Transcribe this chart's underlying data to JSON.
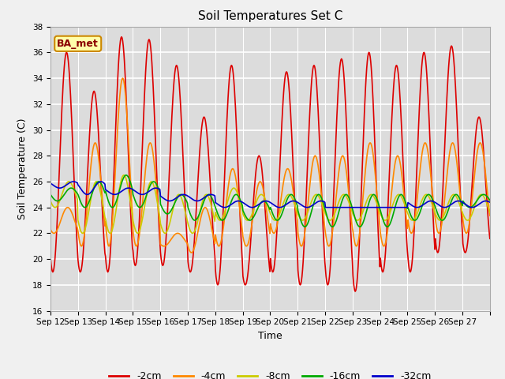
{
  "title": "Soil Temperatures Set C",
  "xlabel": "Time",
  "ylabel": "Soil Temperature (C)",
  "ylim": [
    16,
    38
  ],
  "yticks": [
    16,
    18,
    20,
    22,
    24,
    26,
    28,
    30,
    32,
    34,
    36,
    38
  ],
  "colors": {
    "-2cm": "#dd0000",
    "-4cm": "#ff8800",
    "-8cm": "#cccc00",
    "-16cm": "#00aa00",
    "-32cm": "#0000cc"
  },
  "legend_labels": [
    "-2cm",
    "-4cm",
    "-8cm",
    "-16cm",
    "-32cm"
  ],
  "annotation_text": "BA_met",
  "annotation_bg": "#ffffaa",
  "annotation_border": "#cc8800",
  "fig_bg": "#f0f0f0",
  "plot_bg": "#dcdcdc",
  "n_days": 16,
  "start_day": 12,
  "points_per_day": 48,
  "series": {
    "-2cm": {
      "daily_max": [
        36.0,
        33.0,
        37.2,
        37.0,
        35.0,
        31.0,
        35.0,
        28.0,
        34.5,
        35.0,
        35.5,
        36.0,
        35.0,
        36.0,
        36.5,
        31.0
      ],
      "daily_min": [
        19.0,
        19.0,
        19.0,
        19.5,
        19.5,
        19.0,
        18.0,
        18.0,
        19.0,
        18.0,
        18.0,
        17.5,
        19.0,
        19.0,
        20.5,
        20.5
      ],
      "peak_hour": 14
    },
    "-4cm": {
      "daily_max": [
        24.0,
        29.0,
        34.0,
        29.0,
        22.0,
        24.0,
        27.0,
        26.0,
        27.0,
        28.0,
        28.0,
        29.0,
        28.0,
        29.0,
        29.0,
        29.0
      ],
      "daily_min": [
        22.0,
        21.0,
        21.0,
        21.0,
        21.0,
        20.5,
        21.0,
        21.0,
        22.0,
        21.0,
        21.0,
        21.0,
        21.0,
        22.0,
        22.0,
        22.0
      ],
      "peak_hour": 15
    },
    "-8cm": {
      "daily_max": [
        26.0,
        26.0,
        26.5,
        26.0,
        25.0,
        25.0,
        25.5,
        25.0,
        25.0,
        25.0,
        25.0,
        25.0,
        25.0,
        25.0,
        25.0,
        25.0
      ],
      "daily_min": [
        24.0,
        22.0,
        22.0,
        22.0,
        22.0,
        22.0,
        23.0,
        23.0,
        23.0,
        23.0,
        23.0,
        23.0,
        23.0,
        23.0,
        23.0,
        23.0
      ],
      "peak_hour": 16
    },
    "-16cm": {
      "daily_max": [
        25.5,
        26.0,
        26.5,
        26.0,
        25.0,
        25.0,
        25.0,
        24.5,
        25.0,
        25.0,
        25.0,
        25.0,
        25.0,
        25.0,
        25.0,
        25.0
      ],
      "daily_min": [
        24.5,
        24.0,
        24.0,
        24.0,
        23.5,
        23.0,
        23.0,
        23.0,
        23.0,
        22.5,
        22.5,
        22.5,
        22.5,
        23.0,
        23.0,
        24.0
      ],
      "peak_hour": 18
    },
    "-32cm": {
      "daily_max": [
        26.0,
        26.0,
        25.5,
        25.5,
        25.0,
        25.0,
        24.5,
        24.5,
        24.5,
        24.5,
        24.0,
        24.0,
        24.0,
        24.5,
        24.5,
        24.5
      ],
      "daily_min": [
        25.5,
        25.0,
        25.0,
        25.0,
        24.5,
        24.5,
        24.0,
        24.0,
        24.0,
        24.0,
        24.0,
        24.0,
        24.0,
        24.0,
        24.0,
        24.0
      ],
      "peak_hour": 20
    }
  },
  "xtick_labels": [
    "Sep 12",
    "Sep 13",
    "Sep 14",
    "Sep 15",
    "Sep 16",
    "Sep 17",
    "Sep 18",
    "Sep 19",
    "Sep 20",
    "Sep 21",
    "Sep 22",
    "Sep 23",
    "Sep 24",
    "Sep 25",
    "Sep 26",
    "Sep 27"
  ],
  "linewidth": 1.2,
  "tick_fontsize": 7.5,
  "label_fontsize": 9,
  "title_fontsize": 11
}
